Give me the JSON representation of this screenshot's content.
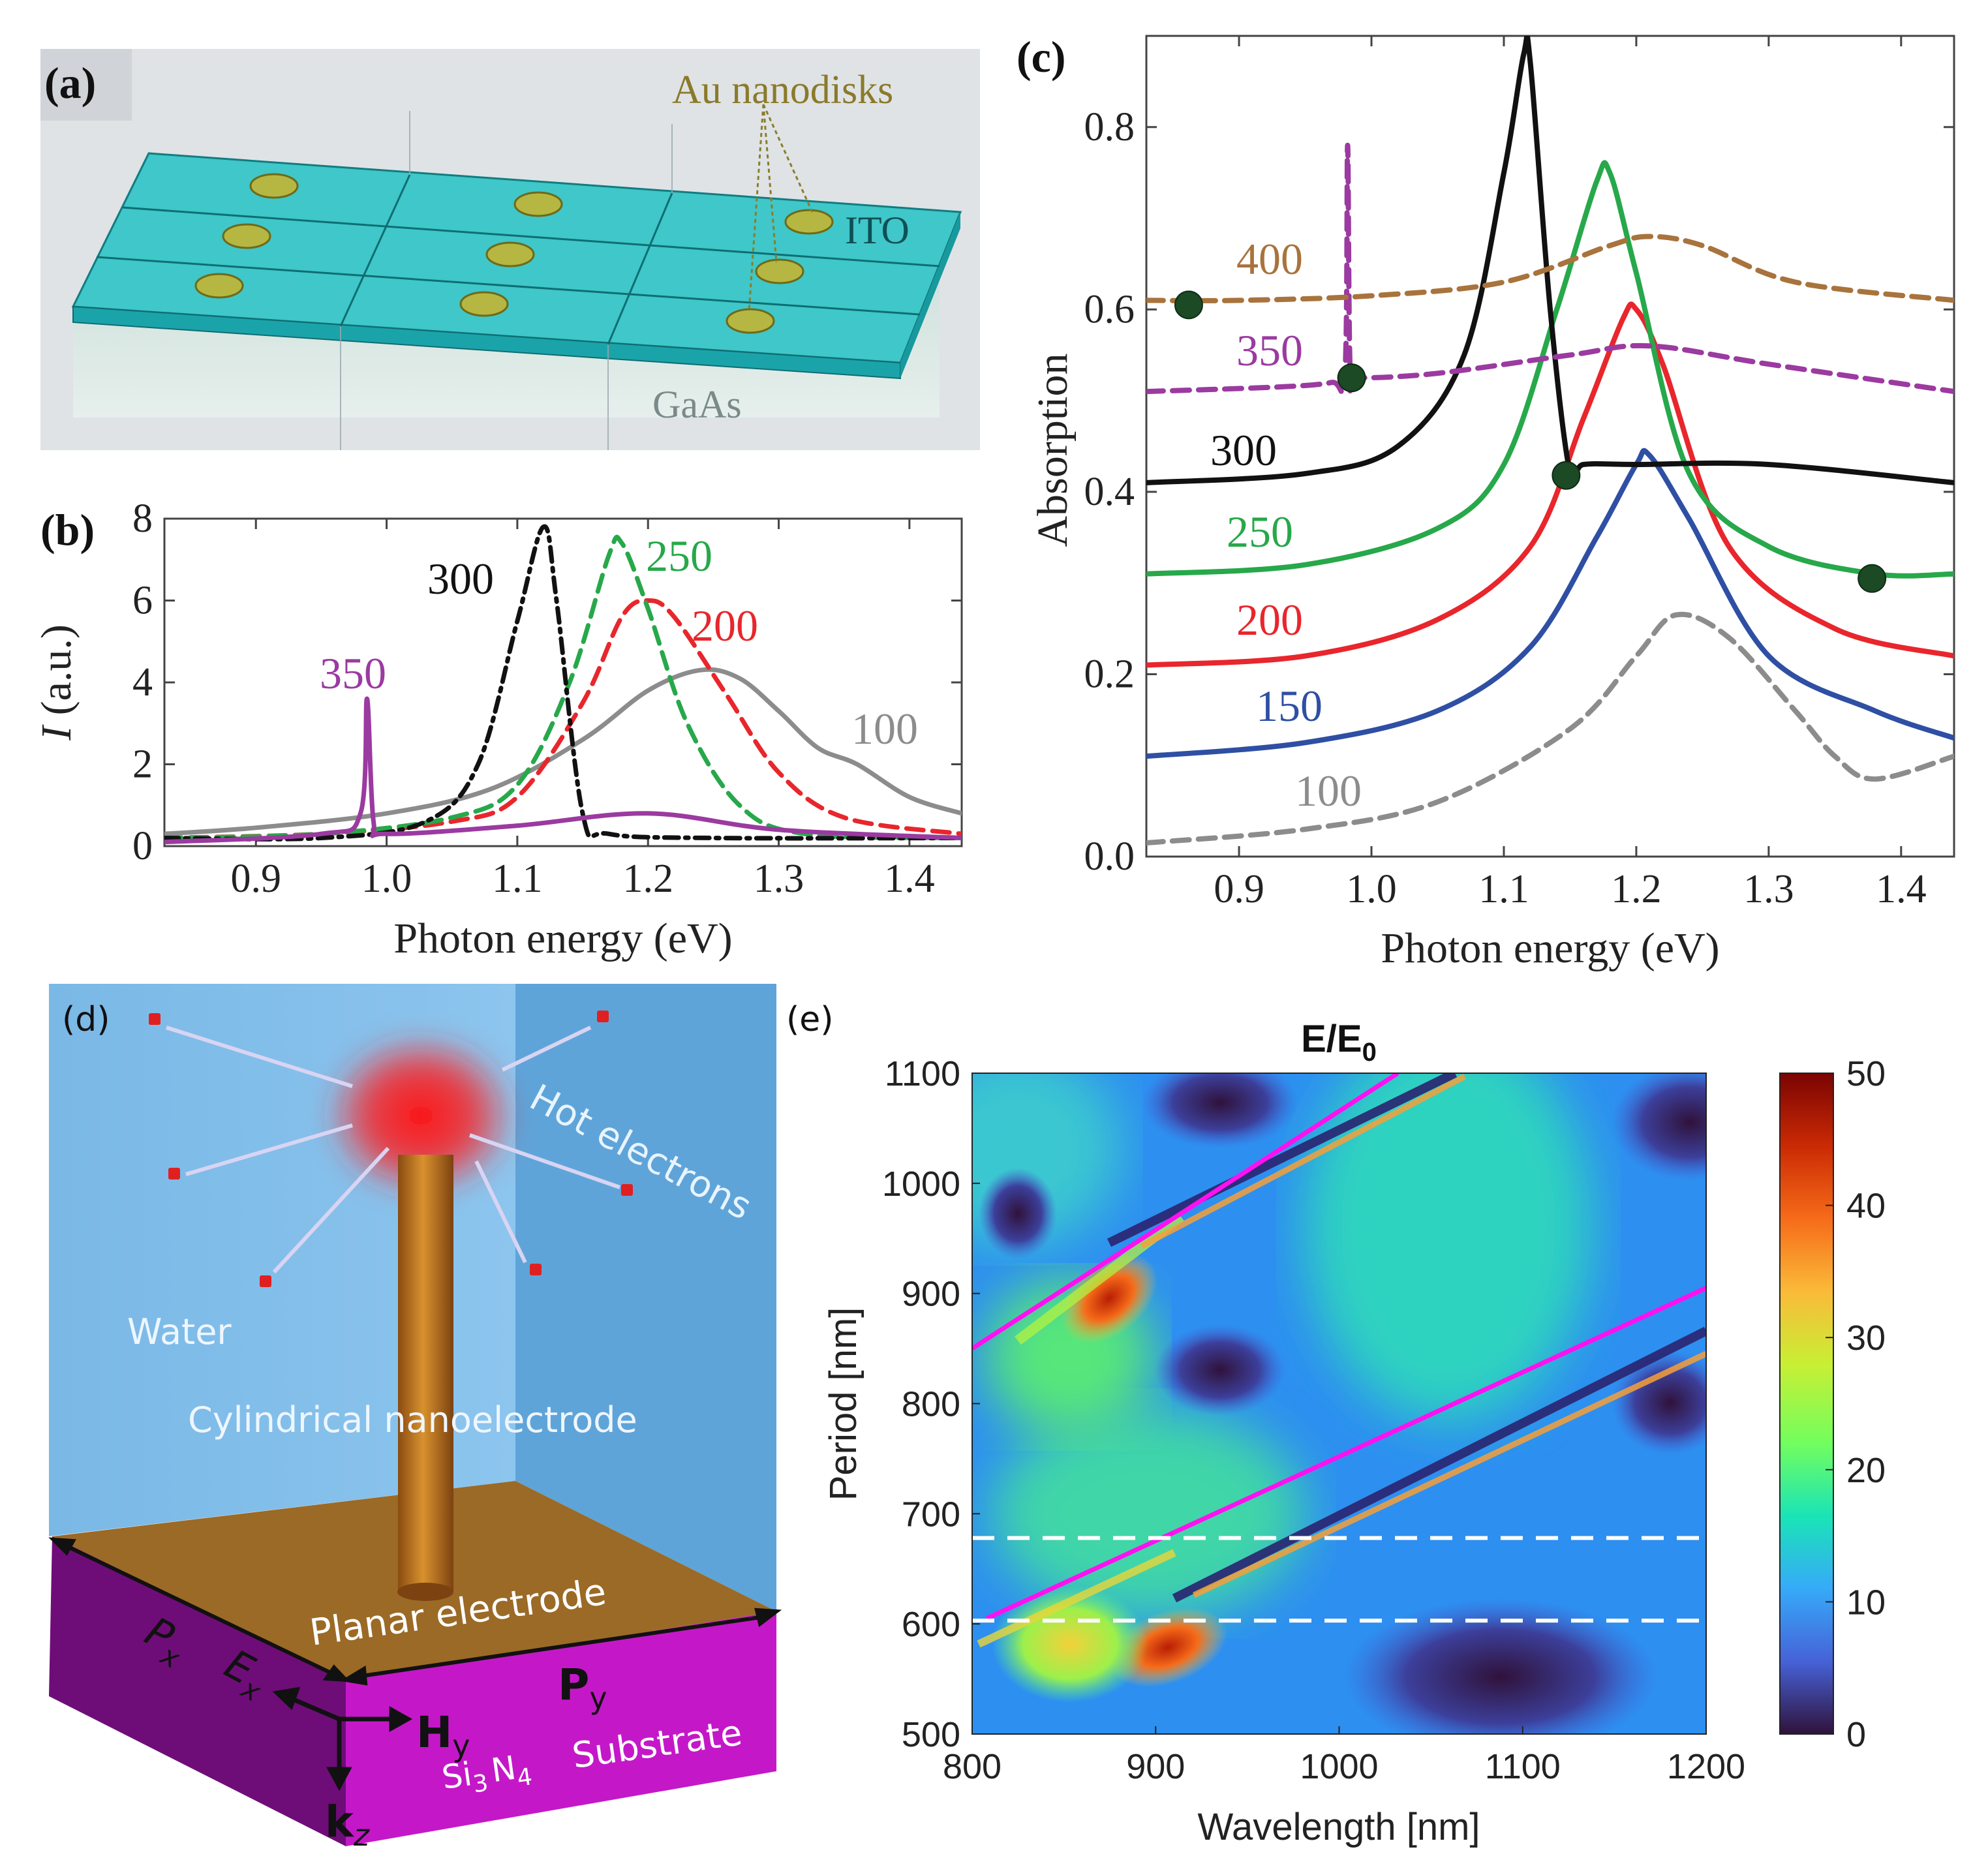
{
  "colors": {
    "c100": "#8c8c8c",
    "c150": "#2e4fa3",
    "c200": "#e8262c",
    "c250": "#27a84a",
    "c300": "#111111",
    "c350": "#9b3aa0",
    "c400": "#a8733c",
    "magenta": "#ff10f0"
  },
  "panel_a": {
    "label": "(a)",
    "au_label": "Au nanodisks",
    "ito_label": "ITO",
    "gaas_label": "GaAs"
  },
  "panel_d": {
    "label": "(d)",
    "hot_electrons": "Hot electrons",
    "water": "Water",
    "cyl": "Cylindrical nanoelectrode",
    "planar": "Planar electrode",
    "px": "P",
    "px_sub": "x",
    "py": "P",
    "py_sub": "y",
    "ex": "E",
    "ex_sub": "x",
    "hy": "H",
    "hy_sub": "y",
    "kz": "k",
    "kz_sub": "z",
    "si": "Si",
    "si_sub": "3",
    "n": "N",
    "n_sub": "4",
    "substrate": "Substrate"
  },
  "chart_data": [
    {
      "id": "b",
      "type": "line",
      "panel_label": "(b)",
      "xlabel": "Photon energy (eV)",
      "ylabel_italic": "I",
      "ylabel_rest": " (a.u.)",
      "xlim": [
        0.83,
        1.44
      ],
      "ylim": [
        0,
        8
      ],
      "xticks": [
        "0.9",
        "1.0",
        "1.1",
        "1.2",
        "1.3",
        "1.4"
      ],
      "yticks": [
        "0",
        "2",
        "4",
        "6",
        "8"
      ],
      "series": [
        {
          "name": "100",
          "style": "solid",
          "x": [
            0.83,
            0.9,
            1.0,
            1.08,
            1.15,
            1.2,
            1.24,
            1.27,
            1.3,
            1.33,
            1.36,
            1.4,
            1.44
          ],
          "y": [
            0.3,
            0.45,
            0.8,
            1.4,
            2.6,
            3.8,
            4.3,
            4.1,
            3.3,
            2.4,
            2.0,
            1.2,
            0.8
          ]
        },
        {
          "name": "200",
          "style": "dash",
          "x": [
            0.83,
            0.95,
            1.05,
            1.1,
            1.15,
            1.18,
            1.2,
            1.22,
            1.26,
            1.3,
            1.35,
            1.44
          ],
          "y": [
            0.2,
            0.3,
            0.6,
            1.2,
            3.5,
            5.6,
            6.0,
            5.6,
            3.7,
            1.8,
            0.7,
            0.3
          ]
        },
        {
          "name": "250",
          "style": "dash",
          "x": [
            0.83,
            0.95,
            1.05,
            1.1,
            1.14,
            1.17,
            1.18,
            1.2,
            1.23,
            1.27,
            1.32,
            1.44
          ],
          "y": [
            0.2,
            0.3,
            0.7,
            1.5,
            4.0,
            7.1,
            7.4,
            5.8,
            3.0,
            1.0,
            0.3,
            0.2
          ]
        },
        {
          "name": "300",
          "style": "dashdot",
          "x": [
            0.83,
            0.95,
            1.03,
            1.07,
            1.1,
            1.12,
            1.13,
            1.15,
            1.17,
            1.25,
            1.44
          ],
          "y": [
            0.2,
            0.2,
            0.6,
            2.0,
            5.5,
            7.8,
            6.0,
            0.8,
            0.3,
            0.2,
            0.2
          ]
        },
        {
          "name": "350",
          "style": "solid",
          "x": [
            0.83,
            0.95,
            0.98,
            0.985,
            0.99,
            1.0,
            1.1,
            1.2,
            1.3,
            1.44
          ],
          "y": [
            0.1,
            0.3,
            0.8,
            3.6,
            0.6,
            0.3,
            0.5,
            0.8,
            0.4,
            0.2
          ]
        }
      ],
      "curve_labels": [
        "300",
        "250",
        "200",
        "350",
        "100"
      ]
    },
    {
      "id": "c",
      "type": "line",
      "panel_label": "(c)",
      "xlabel": "Photon energy (eV)",
      "ylabel": "Absorption",
      "xlim": [
        0.83,
        1.44
      ],
      "ylim": [
        0,
        0.9
      ],
      "xticks": [
        "0.9",
        "1.0",
        "1.1",
        "1.2",
        "1.3",
        "1.4"
      ],
      "yticks": [
        "0.0",
        "0.2",
        "0.4",
        "0.6",
        "0.8"
      ],
      "series": [
        {
          "name": "100",
          "style": "dash",
          "x": [
            0.83,
            0.95,
            1.05,
            1.15,
            1.2,
            1.23,
            1.27,
            1.32,
            1.35,
            1.38,
            1.44
          ],
          "y": [
            0.015,
            0.03,
            0.06,
            0.14,
            0.22,
            0.265,
            0.24,
            0.16,
            0.11,
            0.085,
            0.11
          ]
        },
        {
          "name": "150",
          "style": "solid",
          "x": [
            0.83,
            0.95,
            1.05,
            1.12,
            1.17,
            1.2,
            1.21,
            1.24,
            1.3,
            1.38,
            1.44
          ],
          "y": [
            0.11,
            0.125,
            0.16,
            0.23,
            0.35,
            0.43,
            0.44,
            0.37,
            0.22,
            0.16,
            0.13
          ]
        },
        {
          "name": "200",
          "style": "solid",
          "x": [
            0.83,
            0.95,
            1.05,
            1.12,
            1.16,
            1.19,
            1.2,
            1.22,
            1.27,
            1.35,
            1.44
          ],
          "y": [
            0.21,
            0.22,
            0.26,
            0.34,
            0.48,
            0.59,
            0.6,
            0.54,
            0.34,
            0.25,
            0.22
          ]
        },
        {
          "name": "250",
          "style": "solid",
          "x": [
            0.83,
            0.95,
            1.05,
            1.1,
            1.14,
            1.17,
            1.18,
            1.2,
            1.24,
            1.3,
            1.38,
            1.44
          ],
          "y": [
            0.31,
            0.32,
            0.36,
            0.43,
            0.6,
            0.74,
            0.75,
            0.64,
            0.42,
            0.34,
            0.31,
            0.31
          ]
        },
        {
          "name": "300",
          "style": "solid",
          "x": [
            0.83,
            0.95,
            1.02,
            1.07,
            1.1,
            1.115,
            1.12,
            1.135,
            1.15,
            1.16,
            1.2,
            1.3,
            1.44
          ],
          "y": [
            0.41,
            0.42,
            0.45,
            0.55,
            0.75,
            0.88,
            0.87,
            0.6,
            0.42,
            0.43,
            0.43,
            0.43,
            0.41
          ]
        },
        {
          "name": "350",
          "style": "dash",
          "x": [
            0.83,
            0.93,
            0.97,
            0.98,
            0.982,
            0.984,
            0.99,
            1.05,
            1.15,
            1.21,
            1.3,
            1.44
          ],
          "y": [
            0.51,
            0.515,
            0.52,
            0.53,
            0.78,
            0.53,
            0.525,
            0.53,
            0.55,
            0.56,
            0.54,
            0.51
          ]
        },
        {
          "name": "400",
          "style": "dash",
          "x": [
            0.83,
            0.9,
            1.0,
            1.1,
            1.18,
            1.21,
            1.25,
            1.32,
            1.44
          ],
          "y": [
            0.61,
            0.61,
            0.615,
            0.63,
            0.67,
            0.68,
            0.67,
            0.63,
            0.61
          ]
        }
      ],
      "markers": [
        {
          "x": 0.862,
          "y": 0.605
        },
        {
          "x": 0.985,
          "y": 0.525
        },
        {
          "x": 1.147,
          "y": 0.418
        },
        {
          "x": 1.378,
          "y": 0.305
        }
      ],
      "curve_labels": [
        "400",
        "350",
        "300",
        "250",
        "200",
        "150",
        "100"
      ]
    },
    {
      "id": "e",
      "type": "heatmap",
      "panel_label": "(e)",
      "title": "E/E",
      "title_sub": "0",
      "xlabel": "Wavelength [nm]",
      "ylabel": "Period [nm]",
      "xlim": [
        800,
        1200
      ],
      "ylim": [
        500,
        1100
      ],
      "xticks": [
        "800",
        "900",
        "1000",
        "1100",
        "1200"
      ],
      "yticks": [
        "500",
        "600",
        "700",
        "800",
        "900",
        "1000",
        "1100"
      ],
      "colorbar_range": [
        0,
        50
      ],
      "colorbar_ticks": [
        "0",
        "10",
        "20",
        "30",
        "40",
        "50"
      ],
      "colormap": [
        "#30123b",
        "#4662d7",
        "#36aaf9",
        "#1ae4b6",
        "#72fe5e",
        "#c8ef34",
        "#faba39",
        "#f66b19",
        "#ca2a04",
        "#7a0403"
      ],
      "magenta_lines": [
        {
          "x": [
            800,
            1032
          ],
          "y": [
            850,
            1100
          ]
        },
        {
          "x": [
            808,
            1200
          ],
          "y": [
            605,
            905
          ]
        }
      ],
      "dashed_levels": [
        603,
        678
      ]
    }
  ]
}
